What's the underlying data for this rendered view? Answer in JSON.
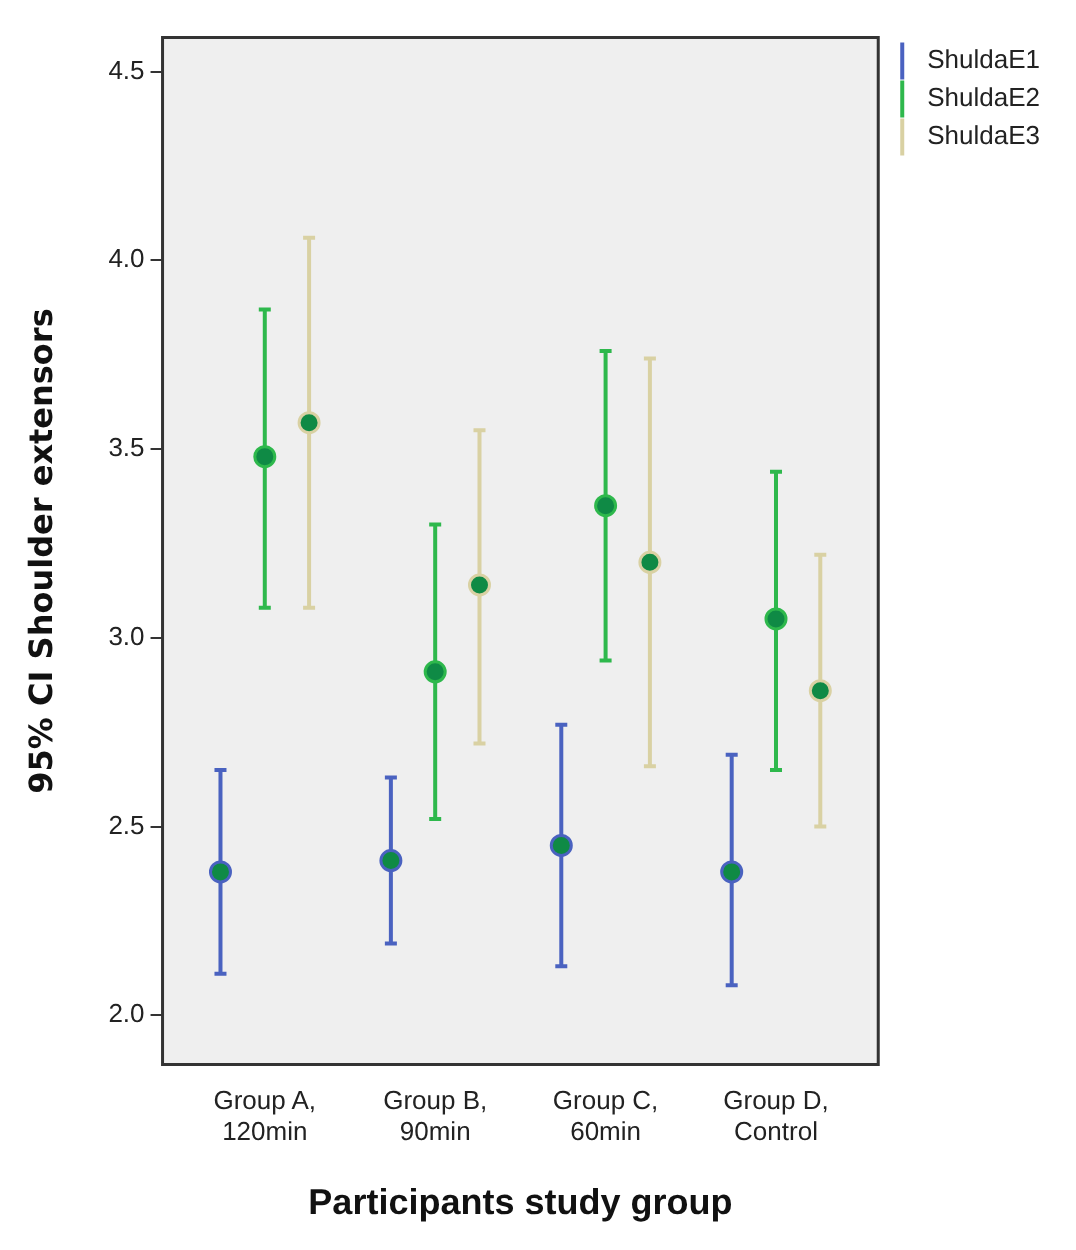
{
  "chart_data": {
    "type": "scatter",
    "xlabel": "Participants study group",
    "ylabel": "95% CI Shoulder extensors",
    "categories": [
      "Group A, 120min",
      "Group B, 90min",
      "Group C, 60min",
      "Group D, Control"
    ],
    "series": [
      {
        "name": "ShuldaE1",
        "color": "#4a62c0",
        "values": [
          2.38,
          2.41,
          2.45,
          2.38
        ],
        "errors": [
          [
            2.11,
            2.65
          ],
          [
            2.19,
            2.63
          ],
          [
            2.13,
            2.77
          ],
          [
            2.08,
            2.69
          ]
        ]
      },
      {
        "name": "ShuldaE2",
        "color": "#2eb84c",
        "values": [
          3.48,
          2.91,
          3.35,
          3.05
        ],
        "errors": [
          [
            3.08,
            3.87
          ],
          [
            2.52,
            3.3
          ],
          [
            2.94,
            3.76
          ],
          [
            2.65,
            3.44
          ]
        ]
      },
      {
        "name": "ShuldaE3",
        "color": "#d9d1a3",
        "values": [
          3.57,
          3.14,
          3.2,
          2.86
        ],
        "errors": [
          [
            3.08,
            4.06
          ],
          [
            2.72,
            3.55
          ],
          [
            2.66,
            3.74
          ],
          [
            2.5,
            3.22
          ]
        ]
      }
    ],
    "ylim": [
      1.87,
      4.59
    ],
    "yticks": [
      {
        "value": 2,
        "label": "2.0"
      },
      {
        "value": 2.5,
        "label": "2.5"
      },
      {
        "value": 3,
        "label": "3.0"
      },
      {
        "value": 3.5,
        "label": "3.5"
      },
      {
        "value": 4,
        "label": "4.0"
      },
      {
        "value": 4.5,
        "label": "4.5"
      }
    ],
    "grid": false,
    "legend": "top right",
    "marker": "circle"
  }
}
